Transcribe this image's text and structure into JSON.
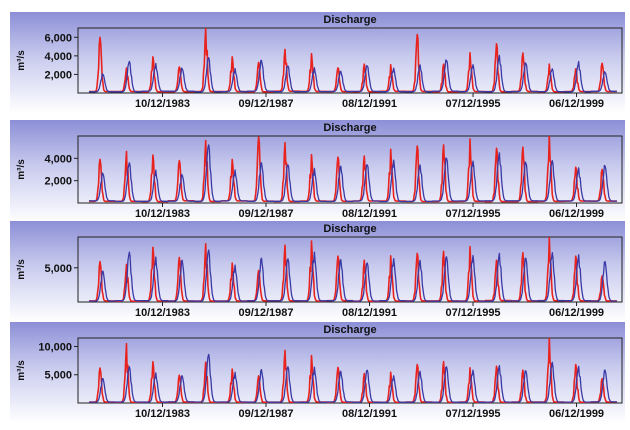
{
  "chart_data": [
    {
      "type": "line",
      "title": "Discharge",
      "ylabel": "m³/s",
      "ylim": [
        0,
        7000
      ],
      "yticks": [
        2000,
        4000,
        6000
      ],
      "ytick_labels": [
        "2,000",
        "4,000",
        "6,000"
      ],
      "xtick_labels": [
        "10/12/1983",
        "09/12/1987",
        "08/12/1991",
        "07/12/1995",
        "06/12/1999"
      ],
      "xlim": [
        "1980-08",
        "2001-03"
      ],
      "grid": false,
      "series": [
        {
          "color": "#e8231f",
          "peaks": [
            6000,
            2600,
            3900,
            2800,
            7000,
            3900,
            3300,
            4700,
            4200,
            2700,
            3100,
            2900,
            6300,
            3100,
            4200,
            5300,
            4300,
            3000,
            2600,
            3200
          ]
        },
        {
          "color": "#3a3aa6",
          "peaks": [
            2000,
            3400,
            3000,
            2600,
            3800,
            2500,
            3500,
            2900,
            2600,
            2300,
            2900,
            2600,
            3000,
            3500,
            3000,
            4000,
            3200,
            2600,
            3300,
            2200
          ]
        }
      ]
    },
    {
      "type": "line",
      "title": "Discharge",
      "ylabel": "m³/s",
      "ylim": [
        0,
        6000
      ],
      "yticks": [
        2000,
        4000
      ],
      "ytick_labels": [
        "2,000",
        "4,000"
      ],
      "xtick_labels": [
        "10/12/1983",
        "09/12/1987",
        "08/12/1991",
        "07/12/1995",
        "06/12/1999"
      ],
      "xlim": [
        "1980-08",
        "2001-03"
      ],
      "grid": false,
      "series": [
        {
          "color": "#e8231f",
          "peaks": [
            3900,
            4600,
            4300,
            3800,
            5600,
            3900,
            5900,
            5400,
            4300,
            4100,
            4200,
            4700,
            5100,
            5200,
            5600,
            4900,
            5000,
            6000,
            3200,
            3000
          ]
        },
        {
          "color": "#3a3aa6",
          "peaks": [
            2600,
            3600,
            2800,
            2500,
            5200,
            2800,
            3600,
            3400,
            3000,
            3300,
            3400,
            3800,
            3400,
            4000,
            3700,
            4400,
            3600,
            3800,
            3000,
            3300
          ]
        }
      ]
    },
    {
      "type": "line",
      "title": "Discharge",
      "ylabel": "m³/s",
      "ylim": [
        0,
        9500
      ],
      "yticks": [
        5000
      ],
      "ytick_labels": [
        "5,000"
      ],
      "xtick_labels": [
        "10/12/1983",
        "09/12/1987",
        "08/12/1991",
        "07/12/1995",
        "06/12/1999"
      ],
      "xlim": [
        "1980-08",
        "2001-03"
      ],
      "grid": false,
      "series": [
        {
          "color": "#e8231f",
          "peaks": [
            5900,
            5500,
            8000,
            6500,
            8500,
            5700,
            4600,
            8300,
            8900,
            6700,
            6100,
            6700,
            7100,
            7400,
            8000,
            6100,
            7200,
            9300,
            6700,
            3800
          ]
        },
        {
          "color": "#3a3aa6",
          "peaks": [
            4500,
            7300,
            6400,
            6100,
            7600,
            5300,
            6400,
            6300,
            7200,
            6200,
            5700,
            6300,
            6100,
            6600,
            6800,
            7100,
            6400,
            7200,
            6800,
            5900
          ]
        }
      ]
    },
    {
      "type": "line",
      "title": "Discharge",
      "ylabel": "m³/s",
      "ylim": [
        0,
        11500
      ],
      "yticks": [
        5000,
        10000
      ],
      "ytick_labels": [
        "5,000",
        "10,000"
      ],
      "xtick_labels": [
        "10/12/1983",
        "09/12/1987",
        "08/12/1991",
        "07/12/1995",
        "06/12/1999"
      ],
      "xlim": [
        "1980-08",
        "2001-03"
      ],
      "grid": false,
      "series": [
        {
          "color": "#e8231f",
          "peaks": [
            6200,
            10500,
            7300,
            4900,
            7200,
            6000,
            4800,
            9300,
            8400,
            6300,
            5200,
            5400,
            6800,
            7300,
            6100,
            6500,
            5800,
            11500,
            6800,
            4300
          ]
        },
        {
          "color": "#3a3aa6",
          "peaks": [
            4300,
            6400,
            5200,
            4800,
            8600,
            5300,
            5900,
            6400,
            6300,
            5600,
            5800,
            4800,
            5600,
            6400,
            5800,
            6600,
            5700,
            7200,
            6400,
            5800
          ]
        }
      ]
    }
  ]
}
